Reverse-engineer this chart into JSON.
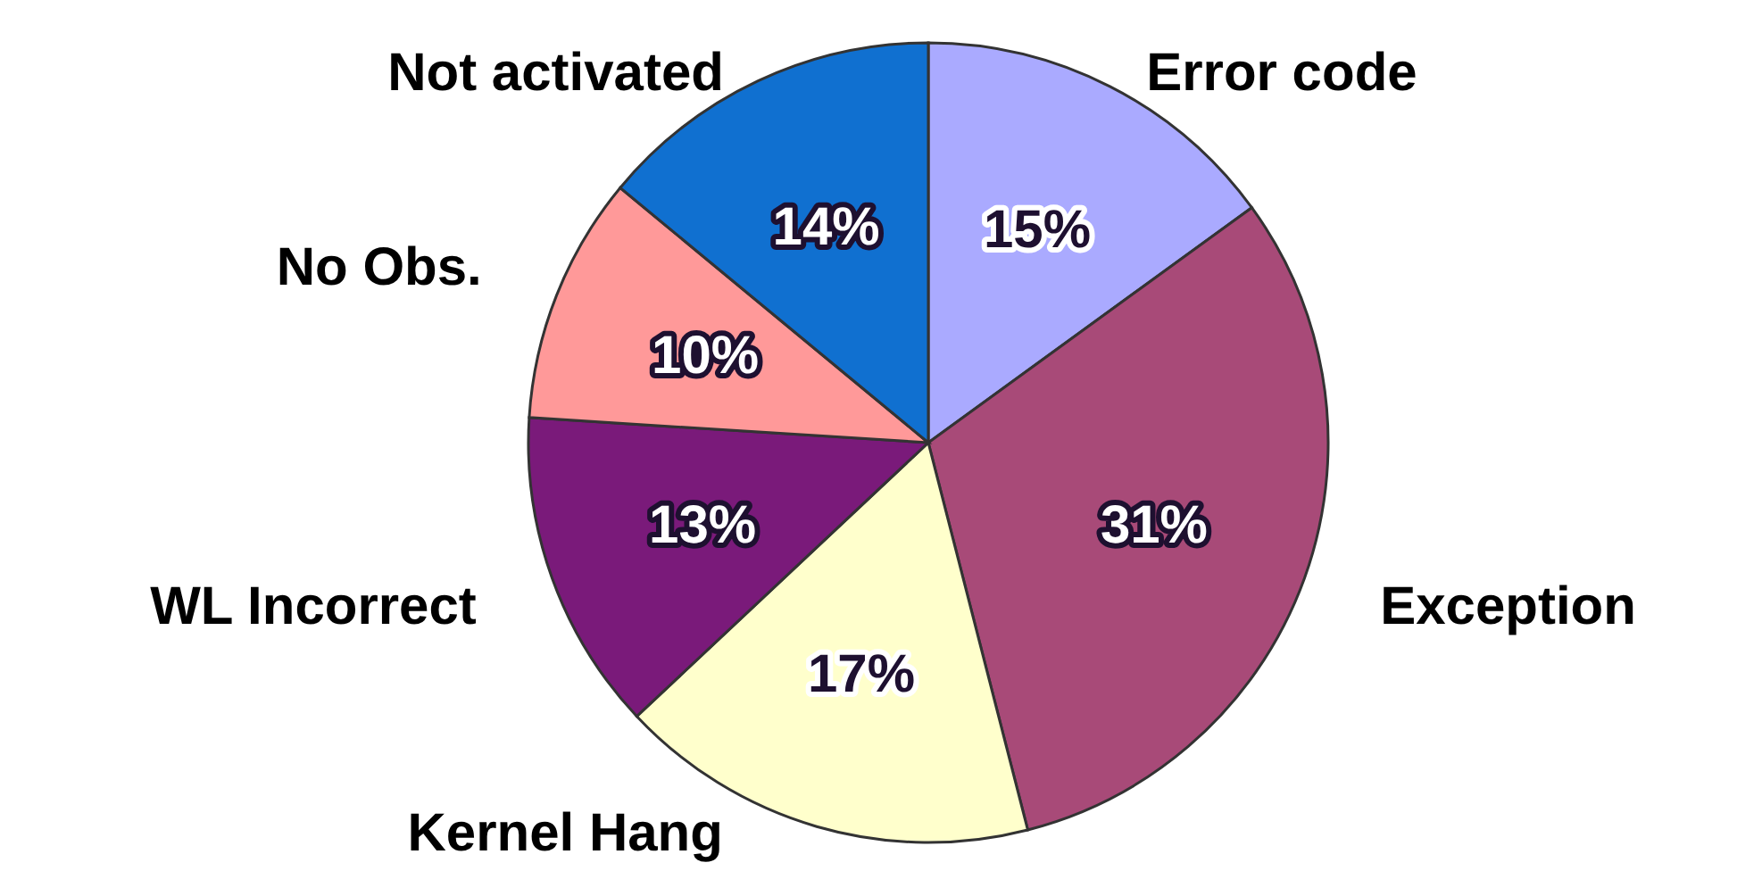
{
  "chart_data": {
    "type": "pie",
    "categories": [
      "Error code",
      "Exception",
      "Kernel Hang",
      "WL Incorrect",
      "No Obs.",
      "Not activated"
    ],
    "values": [
      15,
      31,
      17,
      13,
      10,
      14
    ],
    "colors": [
      "#aaaaff",
      "#a84a78",
      "#ffffcc",
      "#7a1a7a",
      "#ff9999",
      "#1070d0"
    ],
    "value_labels": [
      "15%",
      "31%",
      "17%",
      "13%",
      "10%",
      "14%"
    ]
  }
}
